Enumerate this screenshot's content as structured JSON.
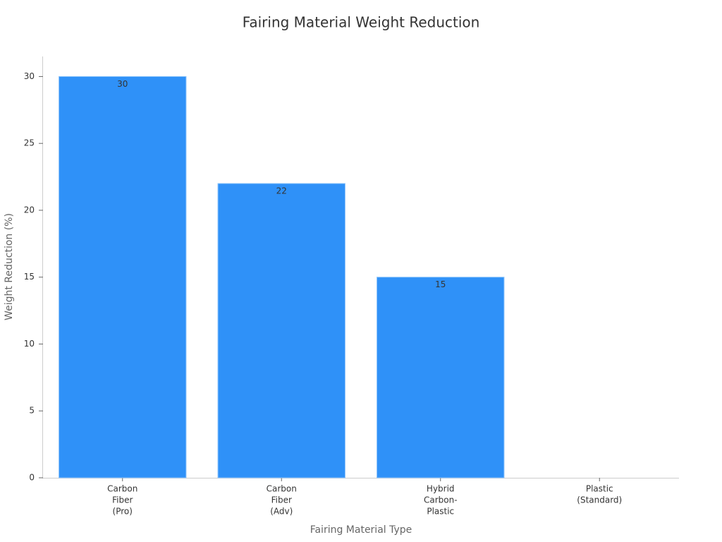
{
  "chart_data": {
    "type": "bar",
    "title": "Fairing Material Weight Reduction",
    "x_label": "Fairing Material Type",
    "y_label": "Weight Reduction (%)",
    "categories": [
      [
        "Carbon",
        "Fiber",
        "(Pro)"
      ],
      [
        "Carbon",
        "Fiber",
        "(Adv)"
      ],
      [
        "Hybrid",
        "Carbon-",
        "Plastic"
      ],
      [
        "Plastic",
        "(Standard)"
      ]
    ],
    "values": [
      30,
      22,
      15,
      0
    ],
    "value_labels": [
      "30",
      "22",
      "15",
      null
    ],
    "color": "#2f91f8",
    "ylim": [
      0,
      31.5
    ],
    "yticks": [
      0,
      5,
      10,
      15,
      20,
      25,
      30
    ],
    "grid": false
  }
}
